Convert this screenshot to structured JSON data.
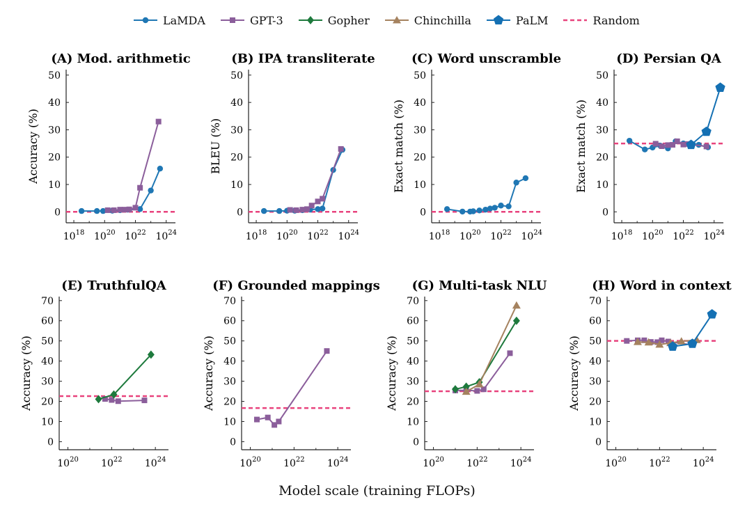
{
  "legend": [
    {
      "name": "LaMDA",
      "color": "#1f77b4",
      "marker": "circle"
    },
    {
      "name": "GPT-3",
      "color": "#8b5e9b",
      "marker": "square"
    },
    {
      "name": "Gopher",
      "color": "#1e7a3d",
      "marker": "diamond"
    },
    {
      "name": "Chinchilla",
      "color": "#a5825f",
      "marker": "triangle"
    },
    {
      "name": "PaLM",
      "color": "#1470b3",
      "marker": "pentagon"
    },
    {
      "name": "Random",
      "color": "#e8437d",
      "marker": "dash"
    }
  ],
  "xlabel": "Model scale (training FLOPs)",
  "chart_data": [
    {
      "type": "line",
      "title": "(A) Mod. arithmetic",
      "ylabel": "Accuracy (%)",
      "xscale": "log",
      "xlim_log10": [
        17.5,
        24.6
      ],
      "xticks_log10": [
        18,
        20,
        22,
        24
      ],
      "ylim": [
        -4,
        52
      ],
      "yticks": [
        0,
        10,
        20,
        30,
        40,
        50
      ],
      "random": 0,
      "series": [
        {
          "name": "LaMDA",
          "points": [
            [
              18.5,
              0.3
            ],
            [
              19.5,
              0.3
            ],
            [
              19.9,
              0.3
            ],
            [
              20.5,
              0.4
            ],
            [
              21.0,
              0.6
            ],
            [
              21.5,
              0.8
            ],
            [
              22.3,
              1.0
            ],
            [
              23.0,
              7.8
            ],
            [
              23.6,
              15.8
            ]
          ]
        },
        {
          "name": "GPT-3",
          "points": [
            [
              20.2,
              0.6
            ],
            [
              20.6,
              0.6
            ],
            [
              21.0,
              0.8
            ],
            [
              21.3,
              0.8
            ],
            [
              21.6,
              0.9
            ],
            [
              22.0,
              1.5
            ],
            [
              22.3,
              8.8
            ],
            [
              23.5,
              33.0
            ]
          ]
        }
      ]
    },
    {
      "type": "line",
      "title": "(B) IPA transliterate",
      "ylabel": "BLEU (%)",
      "xscale": "log",
      "xlim_log10": [
        17.5,
        24.6
      ],
      "xticks_log10": [
        18,
        20,
        22,
        24
      ],
      "ylim": [
        -4,
        52
      ],
      "yticks": [
        0,
        10,
        20,
        30,
        40,
        50
      ],
      "random": 0,
      "series": [
        {
          "name": "LaMDA",
          "points": [
            [
              18.5,
              0.3
            ],
            [
              19.5,
              0.3
            ],
            [
              20.0,
              0.4
            ],
            [
              20.5,
              0.4
            ],
            [
              21.0,
              0.6
            ],
            [
              21.5,
              0.8
            ],
            [
              22.0,
              1.0
            ],
            [
              22.3,
              1.2
            ],
            [
              23.0,
              15.3
            ],
            [
              23.6,
              22.7
            ]
          ]
        },
        {
          "name": "GPT-3",
          "points": [
            [
              20.2,
              0.7
            ],
            [
              20.6,
              0.6
            ],
            [
              21.0,
              0.8
            ],
            [
              21.3,
              1.0
            ],
            [
              21.6,
              2.3
            ],
            [
              22.0,
              3.8
            ],
            [
              22.3,
              4.8
            ],
            [
              23.5,
              23.0
            ]
          ]
        }
      ]
    },
    {
      "type": "line",
      "title": "(C) Word unscramble",
      "ylabel": "Exact match (%)",
      "xscale": "log",
      "xlim_log10": [
        17.5,
        24.6
      ],
      "xticks_log10": [
        18,
        20,
        22,
        24
      ],
      "ylim": [
        -4,
        52
      ],
      "yticks": [
        0,
        10,
        20,
        30,
        40,
        50
      ],
      "random": 0,
      "series": [
        {
          "name": "LaMDA",
          "points": [
            [
              18.5,
              1.0
            ],
            [
              19.5,
              0.1
            ],
            [
              20.0,
              0.1
            ],
            [
              20.2,
              0.2
            ],
            [
              20.6,
              0.5
            ],
            [
              21.0,
              0.8
            ],
            [
              21.3,
              1.2
            ],
            [
              21.6,
              1.5
            ],
            [
              22.0,
              2.3
            ],
            [
              22.5,
              2.0
            ],
            [
              23.0,
              10.7
            ],
            [
              23.6,
              12.3
            ]
          ]
        }
      ]
    },
    {
      "type": "line",
      "title": "(D) Persian QA",
      "ylabel": "Exact match (%)",
      "xscale": "log",
      "xlim_log10": [
        17.5,
        24.6
      ],
      "xticks_log10": [
        18,
        20,
        22,
        24
      ],
      "ylim": [
        -4,
        52
      ],
      "yticks": [
        0,
        10,
        20,
        30,
        40,
        50
      ],
      "random": 25,
      "series": [
        {
          "name": "LaMDA",
          "points": [
            [
              18.5,
              26.0
            ],
            [
              19.5,
              22.8
            ],
            [
              20.0,
              23.5
            ],
            [
              20.5,
              24.2
            ],
            [
              21.0,
              23.2
            ],
            [
              21.5,
              25.8
            ],
            [
              22.0,
              25.0
            ],
            [
              22.5,
              24.3
            ],
            [
              23.0,
              24.5
            ],
            [
              23.6,
              23.6
            ]
          ]
        },
        {
          "name": "GPT-3",
          "points": [
            [
              20.2,
              24.9
            ],
            [
              20.6,
              24.0
            ],
            [
              21.0,
              24.4
            ],
            [
              21.3,
              24.5
            ],
            [
              21.6,
              25.8
            ],
            [
              22.0,
              24.6
            ],
            [
              22.3,
              24.8
            ],
            [
              23.5,
              23.9
            ]
          ]
        },
        {
          "name": "PaLM",
          "points": [
            [
              22.5,
              24.5
            ],
            [
              23.5,
              29.3
            ],
            [
              24.4,
              45.4
            ]
          ]
        }
      ]
    },
    {
      "type": "line",
      "title": "(E) TruthfulQA",
      "ylabel": "Accuracy (%)",
      "xscale": "log",
      "xlim_log10": [
        19.6,
        24.6
      ],
      "xticks_log10": [
        20,
        22,
        24
      ],
      "ylim": [
        -4,
        72
      ],
      "yticks": [
        0,
        10,
        20,
        30,
        40,
        50,
        60,
        70
      ],
      "random": 22.6,
      "series": [
        {
          "name": "GPT-3",
          "points": [
            [
              21.7,
              21.2
            ],
            [
              22.0,
              20.7
            ],
            [
              22.3,
              20.1
            ],
            [
              23.5,
              20.5
            ]
          ]
        },
        {
          "name": "Gopher",
          "points": [
            [
              21.4,
              21.1
            ],
            [
              22.1,
              23.4
            ],
            [
              23.8,
              43.2
            ]
          ]
        }
      ]
    },
    {
      "type": "line",
      "title": "(F) Grounded mappings",
      "ylabel": "Accuracy (%)",
      "xscale": "log",
      "xlim_log10": [
        19.6,
        24.6
      ],
      "xticks_log10": [
        20,
        22,
        24
      ],
      "ylim": [
        -4,
        72
      ],
      "yticks": [
        0,
        10,
        20,
        30,
        40,
        50,
        60,
        70
      ],
      "random": 16.7,
      "series": [
        {
          "name": "GPT-3",
          "points": [
            [
              20.3,
              11.0
            ],
            [
              20.8,
              12.0
            ],
            [
              21.1,
              8.3
            ],
            [
              21.3,
              10.0
            ],
            [
              23.5,
              45.0
            ]
          ]
        }
      ]
    },
    {
      "type": "line",
      "title": "(G) Multi-task NLU",
      "ylabel": "Accuracy (%)",
      "xscale": "log",
      "xlim_log10": [
        19.6,
        24.6
      ],
      "xticks_log10": [
        20,
        22,
        24
      ],
      "ylim": [
        -4,
        72
      ],
      "yticks": [
        0,
        10,
        20,
        30,
        40,
        50,
        60,
        70
      ],
      "random": 25,
      "series": [
        {
          "name": "GPT-3",
          "points": [
            [
              21.0,
              25.4
            ],
            [
              21.5,
              25.5
            ],
            [
              22.0,
              25.2
            ],
            [
              22.3,
              26.0
            ],
            [
              23.5,
              43.9
            ]
          ]
        },
        {
          "name": "Gopher",
          "points": [
            [
              21.0,
              26.0
            ],
            [
              21.5,
              27.3
            ],
            [
              22.1,
              29.5
            ],
            [
              23.8,
              60.0
            ]
          ]
        },
        {
          "name": "Chinchilla",
          "points": [
            [
              21.5,
              24.8
            ],
            [
              22.1,
              28.5
            ],
            [
              23.8,
              67.6
            ]
          ]
        }
      ]
    },
    {
      "type": "line",
      "title": "(H) Word in context",
      "ylabel": "Accuracy (%)",
      "xscale": "log",
      "xlim_log10": [
        19.6,
        24.6
      ],
      "xticks_log10": [
        20,
        22,
        24
      ],
      "ylim": [
        -4,
        72
      ],
      "yticks": [
        0,
        10,
        20,
        30,
        40,
        50,
        60,
        70
      ],
      "random": 50,
      "series": [
        {
          "name": "GPT-3",
          "points": [
            [
              20.5,
              50.0
            ],
            [
              21.0,
              50.3
            ],
            [
              21.3,
              50.3
            ],
            [
              21.6,
              49.5
            ],
            [
              21.9,
              49.4
            ],
            [
              22.1,
              50.3
            ],
            [
              22.4,
              49.7
            ],
            [
              23.5,
              48.0
            ]
          ]
        },
        {
          "name": "Chinchilla",
          "points": [
            [
              21.0,
              49.5
            ],
            [
              21.5,
              49.3
            ],
            [
              22.0,
              48.2
            ],
            [
              22.5,
              49.0
            ],
            [
              23.0,
              49.8
            ],
            [
              23.7,
              50.5
            ]
          ]
        },
        {
          "name": "PaLM",
          "points": [
            [
              22.6,
              47.2
            ],
            [
              23.5,
              48.6
            ],
            [
              24.4,
              63.2
            ]
          ]
        }
      ]
    }
  ]
}
